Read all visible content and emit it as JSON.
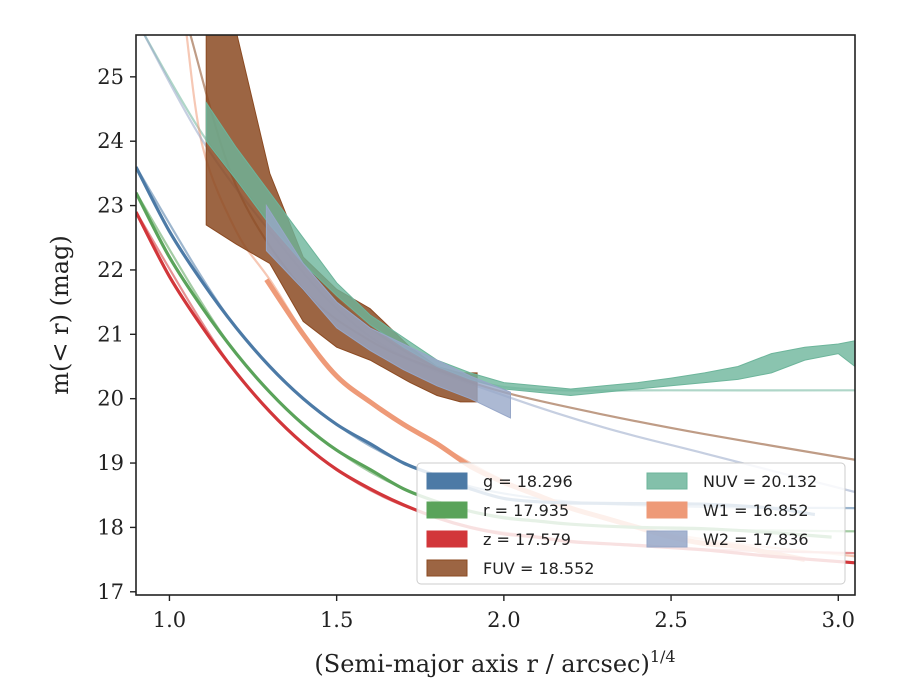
{
  "chart_data": {
    "type": "line",
    "title": "",
    "xlabel": "(Semi-major axis r / arcsec)",
    "xlabel_sup": "1/4",
    "ylabel": "m(< r) (mag)",
    "xlim": [
      0.9,
      3.05
    ],
    "ylim": [
      25.65,
      16.95
    ],
    "y_inverted": true,
    "grid": false,
    "legend_position": "lower-right",
    "legend_columns": 2,
    "xticks": [
      1.0,
      1.5,
      2.0,
      2.5,
      3.0
    ],
    "xtick_labels": [
      "1.0",
      "1.5",
      "2.0",
      "2.5",
      "3.0"
    ],
    "yticks": [
      17,
      18,
      19,
      20,
      21,
      22,
      23,
      24,
      25
    ],
    "ytick_labels": [
      "17",
      "18",
      "19",
      "20",
      "21",
      "22",
      "23",
      "24",
      "25"
    ],
    "series": [
      {
        "name": "g",
        "legend_label": "g = 18.296",
        "color": "#4C7AA6",
        "asymptote": 18.296,
        "measured": [
          [
            0.9,
            23.6
          ],
          [
            1.0,
            22.6
          ],
          [
            1.1,
            21.8
          ],
          [
            1.2,
            21.1
          ],
          [
            1.3,
            20.5
          ],
          [
            1.4,
            20.0
          ],
          [
            1.5,
            19.6
          ],
          [
            1.6,
            19.3
          ],
          [
            1.7,
            19.0
          ],
          [
            1.8,
            18.8
          ],
          [
            1.9,
            18.6
          ],
          [
            2.0,
            18.45
          ],
          [
            2.1,
            18.4
          ],
          [
            2.2,
            18.38
          ],
          [
            2.4,
            18.37
          ],
          [
            2.6,
            18.36
          ],
          [
            2.8,
            18.3
          ],
          [
            2.93,
            18.2
          ]
        ],
        "model": [
          [
            0.9,
            23.6
          ],
          [
            1.2,
            21.1
          ],
          [
            1.5,
            19.6
          ],
          [
            1.8,
            18.8
          ],
          [
            2.1,
            18.45
          ],
          [
            2.5,
            18.33
          ],
          [
            3.05,
            18.3
          ]
        ]
      },
      {
        "name": "r",
        "legend_label": "r = 17.935",
        "color": "#5AA35A",
        "asymptote": 17.935,
        "measured": [
          [
            0.9,
            23.2
          ],
          [
            1.0,
            22.2
          ],
          [
            1.1,
            21.4
          ],
          [
            1.2,
            20.7
          ],
          [
            1.3,
            20.1
          ],
          [
            1.4,
            19.6
          ],
          [
            1.5,
            19.2
          ],
          [
            1.6,
            18.9
          ],
          [
            1.7,
            18.6
          ],
          [
            1.8,
            18.4
          ],
          [
            1.9,
            18.25
          ],
          [
            2.0,
            18.15
          ],
          [
            2.1,
            18.1
          ],
          [
            2.2,
            18.05
          ],
          [
            2.4,
            18.0
          ],
          [
            2.6,
            17.98
          ],
          [
            2.8,
            17.92
          ],
          [
            2.98,
            17.85
          ]
        ],
        "model": [
          [
            0.9,
            23.2
          ],
          [
            1.2,
            20.7
          ],
          [
            1.5,
            19.2
          ],
          [
            1.8,
            18.4
          ],
          [
            2.1,
            18.1
          ],
          [
            2.5,
            17.98
          ],
          [
            3.05,
            17.94
          ]
        ]
      },
      {
        "name": "z",
        "legend_label": "z = 17.579",
        "color": "#D2363A",
        "asymptote": 17.579,
        "measured": [
          [
            0.9,
            22.9
          ],
          [
            1.0,
            21.9
          ],
          [
            1.1,
            21.1
          ],
          [
            1.2,
            20.4
          ],
          [
            1.3,
            19.8
          ],
          [
            1.4,
            19.3
          ],
          [
            1.5,
            18.9
          ],
          [
            1.6,
            18.6
          ],
          [
            1.7,
            18.35
          ],
          [
            1.8,
            18.15
          ],
          [
            1.9,
            18.0
          ],
          [
            2.0,
            17.9
          ],
          [
            2.1,
            17.85
          ],
          [
            2.2,
            17.78
          ],
          [
            2.4,
            17.72
          ],
          [
            2.6,
            17.65
          ],
          [
            2.8,
            17.55
          ],
          [
            3.05,
            17.45
          ]
        ],
        "model": [
          [
            0.9,
            22.9
          ],
          [
            1.2,
            20.4
          ],
          [
            1.5,
            18.9
          ],
          [
            1.8,
            18.15
          ],
          [
            2.1,
            17.85
          ],
          [
            2.5,
            17.68
          ],
          [
            3.05,
            17.6
          ]
        ]
      },
      {
        "name": "FUV",
        "legend_label": "FUV = 18.552",
        "color": "#8B4A22",
        "asymptote": 18.552,
        "band": [
          [
            1.11,
            22.7,
            25.7
          ],
          [
            1.2,
            22.4,
            25.7
          ],
          [
            1.3,
            22.1,
            23.5
          ],
          [
            1.4,
            21.2,
            22.2
          ],
          [
            1.5,
            20.8,
            21.7
          ],
          [
            1.6,
            20.6,
            21.4
          ],
          [
            1.72,
            20.25,
            20.8
          ],
          [
            1.8,
            20.05,
            20.5
          ],
          [
            1.87,
            19.95,
            20.4
          ],
          [
            1.92,
            19.95,
            20.4
          ]
        ],
        "model": [
          [
            1.06,
            25.7
          ],
          [
            1.2,
            23.3
          ],
          [
            1.4,
            21.7
          ],
          [
            1.6,
            20.9
          ],
          [
            1.8,
            20.45
          ],
          [
            2.0,
            20.1
          ],
          [
            2.3,
            19.75
          ],
          [
            2.6,
            19.45
          ],
          [
            3.05,
            19.05
          ]
        ]
      },
      {
        "name": "NUV",
        "legend_label": "NUV = 20.132",
        "color": "#6DB59B",
        "asymptote": 20.132,
        "band": [
          [
            1.11,
            24.0,
            24.6
          ],
          [
            1.2,
            23.4,
            23.9
          ],
          [
            1.3,
            22.7,
            23.2
          ],
          [
            1.4,
            22.1,
            22.5
          ],
          [
            1.5,
            21.6,
            21.8
          ],
          [
            1.6,
            21.15,
            21.3
          ],
          [
            1.7,
            20.8,
            20.95
          ],
          [
            1.8,
            20.5,
            20.6
          ],
          [
            1.9,
            20.3,
            20.4
          ],
          [
            2.0,
            20.15,
            20.25
          ],
          [
            2.1,
            20.1,
            20.2
          ],
          [
            2.2,
            20.05,
            20.15
          ],
          [
            2.3,
            20.1,
            20.2
          ],
          [
            2.4,
            20.15,
            20.25
          ],
          [
            2.5,
            20.2,
            20.32
          ],
          [
            2.6,
            20.25,
            20.4
          ],
          [
            2.7,
            20.3,
            20.5
          ],
          [
            2.8,
            20.4,
            20.7
          ],
          [
            2.9,
            20.6,
            20.8
          ],
          [
            3.0,
            20.7,
            20.85
          ],
          [
            3.05,
            20.5,
            20.9
          ]
        ],
        "model": [
          [
            0.92,
            25.7
          ],
          [
            1.1,
            24.1
          ],
          [
            1.3,
            22.75
          ],
          [
            1.5,
            21.55
          ],
          [
            1.7,
            20.75
          ],
          [
            1.9,
            20.3
          ],
          [
            2.1,
            20.14
          ],
          [
            2.5,
            20.13
          ],
          [
            3.05,
            20.13
          ]
        ]
      },
      {
        "name": "W1",
        "legend_label": "W1 = 16.852",
        "color": "#EE9A78",
        "asymptote": 16.852,
        "measured": [
          [
            1.29,
            21.85
          ],
          [
            1.4,
            21.0
          ],
          [
            1.5,
            20.35
          ],
          [
            1.6,
            19.95
          ],
          [
            1.7,
            19.6
          ],
          [
            1.8,
            19.3
          ],
          [
            1.9,
            18.95
          ],
          [
            2.0,
            18.7
          ],
          [
            2.1,
            18.5
          ],
          [
            2.2,
            18.3
          ],
          [
            2.3,
            18.15
          ],
          [
            2.4,
            18.0
          ],
          [
            2.5,
            17.85
          ],
          [
            2.6,
            17.75
          ],
          [
            2.7,
            17.7
          ],
          [
            2.8,
            17.6
          ],
          [
            2.9,
            17.5
          ]
        ],
        "model": [
          [
            1.05,
            25.7
          ],
          [
            1.1,
            23.9
          ],
          [
            1.2,
            22.6
          ],
          [
            1.3,
            21.85
          ],
          [
            1.5,
            20.35
          ],
          [
            1.8,
            19.3
          ],
          [
            2.1,
            18.5
          ],
          [
            2.5,
            17.9
          ],
          [
            3.05,
            17.55
          ]
        ]
      },
      {
        "name": "W2",
        "legend_label": "W2 = 17.836",
        "color": "#97A7C8",
        "asymptote": 17.836,
        "band": [
          [
            1.29,
            22.3,
            23.0
          ],
          [
            1.4,
            21.7,
            22.1
          ],
          [
            1.5,
            21.1,
            21.5
          ],
          [
            1.6,
            20.75,
            21.1
          ],
          [
            1.7,
            20.45,
            20.85
          ],
          [
            1.8,
            20.2,
            20.6
          ],
          [
            1.9,
            20.0,
            20.35
          ],
          [
            2.02,
            19.7,
            20.1
          ]
        ],
        "model": [
          [
            0.92,
            25.7
          ],
          [
            1.1,
            24.0
          ],
          [
            1.3,
            22.6
          ],
          [
            1.5,
            21.4
          ],
          [
            1.7,
            20.65
          ],
          [
            2.0,
            20.05
          ],
          [
            2.3,
            19.55
          ],
          [
            2.6,
            19.15
          ],
          [
            3.05,
            18.55
          ]
        ]
      }
    ]
  }
}
